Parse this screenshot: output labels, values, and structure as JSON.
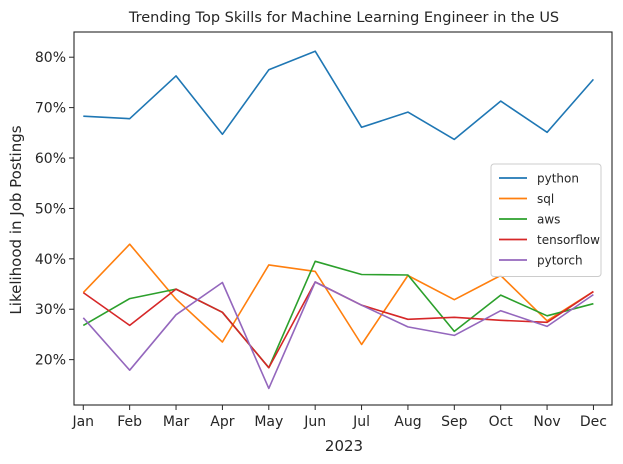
{
  "chart_data": {
    "type": "line",
    "title": "Trending Top Skills for Machine Learning Engineer in the US",
    "xlabel": "2023",
    "ylabel": "Likelihood in Job Postings",
    "categories": [
      "Jan",
      "Feb",
      "Mar",
      "Apr",
      "May",
      "Jun",
      "Jul",
      "Aug",
      "Sep",
      "Oct",
      "Nov",
      "Dec"
    ],
    "ylim": [
      11,
      85
    ],
    "yticks": [
      20,
      30,
      40,
      50,
      60,
      70,
      80
    ],
    "ytick_labels": [
      "20%",
      "30%",
      "40%",
      "50%",
      "60%",
      "70%",
      "80%"
    ],
    "grid": false,
    "legend_position": "center-right",
    "series": [
      {
        "name": "python",
        "color": "#1f77b4",
        "values": [
          68.3,
          67.8,
          76.3,
          64.7,
          77.5,
          81.2,
          66.1,
          69.1,
          63.7,
          71.3,
          65.1,
          75.6
        ]
      },
      {
        "name": "sql",
        "color": "#ff7f0e",
        "values": [
          33.3,
          42.9,
          32.0,
          23.5,
          38.8,
          37.5,
          23.0,
          36.7,
          31.9,
          36.7,
          27.7,
          33.5
        ]
      },
      {
        "name": "aws",
        "color": "#2ca02c",
        "values": [
          26.8,
          32.1,
          34.0,
          29.4,
          18.4,
          39.5,
          36.9,
          36.8,
          25.6,
          32.8,
          28.7,
          31.1
        ]
      },
      {
        "name": "tensorflow",
        "color": "#d62728",
        "values": [
          33.3,
          26.8,
          34.0,
          29.4,
          18.4,
          35.4,
          30.8,
          28.0,
          28.4,
          27.8,
          27.4,
          33.5
        ]
      },
      {
        "name": "pytorch",
        "color": "#9467bd",
        "values": [
          28.3,
          17.9,
          28.9,
          35.3,
          14.3,
          35.4,
          30.8,
          26.5,
          24.8,
          29.7,
          26.6,
          32.9
        ]
      }
    ]
  }
}
